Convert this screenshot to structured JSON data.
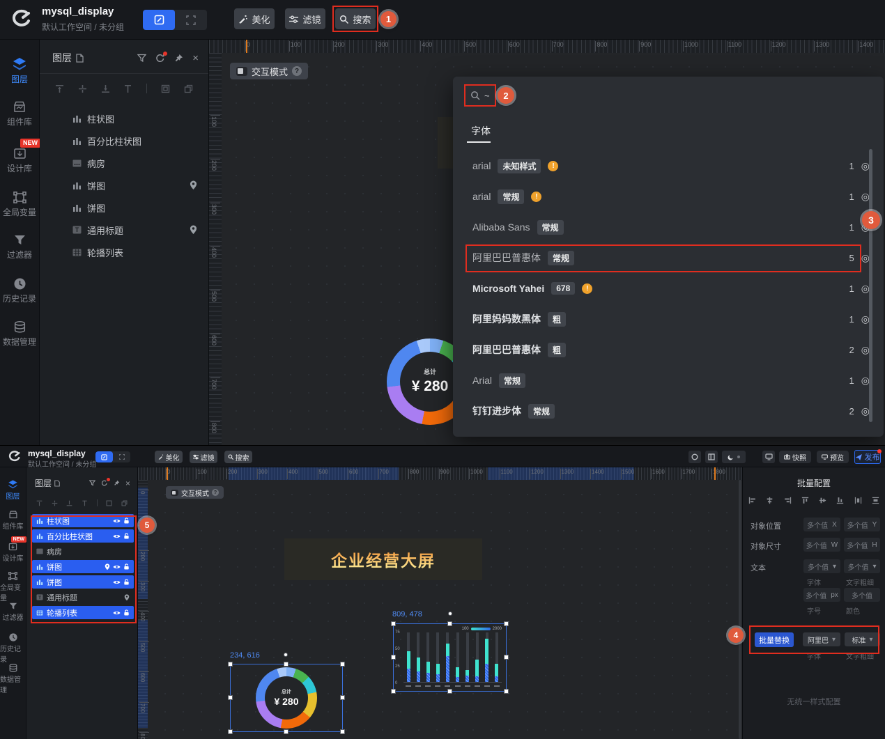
{
  "theme": {
    "red": "#e02d1f",
    "badge": "#e05a3c",
    "warn": "#f0a22c",
    "accent": "#2f6bf2",
    "selrow": "#2a5ef0",
    "teal": "#3fe3cf",
    "barblue": "#2f6be8",
    "hole": "#232528"
  },
  "app": {
    "title": "mysql_display",
    "workspace": "默认工作空间 / 未分组",
    "toolbar": {
      "beautify": "美化",
      "filter": "滤镜",
      "search": "搜索"
    },
    "top_right": {
      "snapshot": "快照",
      "preview": "预览",
      "publish": "发布"
    },
    "interaction_mode": "交互模式"
  },
  "sidebar": {
    "items": [
      {
        "label": "图层"
      },
      {
        "label": "组件库"
      },
      {
        "label": "设计库",
        "badge": "NEW"
      },
      {
        "label": "全局变量"
      },
      {
        "label": "过滤器"
      },
      {
        "label": "历史记录"
      },
      {
        "label": "数据管理"
      }
    ]
  },
  "layers_panel": {
    "title": "图层",
    "items": [
      {
        "label": "柱状图"
      },
      {
        "label": "百分比柱状图"
      },
      {
        "label": "病房"
      },
      {
        "label": "饼图"
      },
      {
        "label": "饼图"
      },
      {
        "label": "通用标题"
      },
      {
        "label": "轮播列表"
      }
    ]
  },
  "search_panel": {
    "query": "~",
    "tab": "字体",
    "fonts": [
      {
        "name": "arial",
        "tag": "未知样式",
        "count": "1"
      },
      {
        "name": "arial",
        "tag": "常规",
        "count": "1"
      },
      {
        "name": "Alibaba Sans",
        "tag": "常规",
        "count": "1"
      },
      {
        "name": "阿里巴巴普惠体",
        "tag": "常规",
        "count": "5"
      },
      {
        "name": "Microsoft Yahei",
        "tag": "678",
        "count": "1"
      },
      {
        "name": "阿里妈妈数黑体",
        "tag": "粗",
        "count": "1"
      },
      {
        "name": "阿里巴巴普惠体",
        "tag": "粗",
        "count": "2"
      },
      {
        "name": "Arial",
        "tag": "常规",
        "count": "1"
      },
      {
        "name": "钉钉进步体",
        "tag": "常规",
        "count": "2"
      }
    ]
  },
  "annotations": {
    "b1": "1",
    "b2": "2",
    "b3": "3",
    "b4": "4",
    "b5": "5"
  },
  "canvas_top": {
    "ruler_h": [
      "0",
      "100",
      "200",
      "300",
      "400",
      "500",
      "600",
      "700",
      "800",
      "900",
      "1000",
      "1100",
      "1200",
      "1300",
      "1400"
    ],
    "ruler_v": [
      "100",
      "200",
      "300",
      "400",
      "500",
      "600",
      "700",
      "800"
    ]
  },
  "canvas_bottom": {
    "ruler_h": [
      "0",
      "100",
      "200",
      "300",
      "400",
      "500",
      "600",
      "700",
      "800",
      "900",
      "1000",
      "1100",
      "1200",
      "1300",
      "1400",
      "1500",
      "1600",
      "1700",
      "1800",
      "1900"
    ],
    "ruler_v": [
      "0",
      "100",
      "200",
      "300",
      "400",
      "500",
      "600",
      "700",
      "800"
    ]
  },
  "screen": {
    "title": "企业经营大屏",
    "donut_label": "234, 616",
    "bar_label": "809, 478",
    "donut_center_label": "总计",
    "donut_center_value": "¥ 280"
  },
  "config_panel": {
    "title": "批量配置",
    "pos_label": "对象位置",
    "size_label": "对象尺寸",
    "text_label": "文本",
    "multi": "多个值",
    "x": "X",
    "y": "Y",
    "w": "W",
    "h": "H",
    "px": "px",
    "font_label": "字体",
    "weight_label": "文字粗细",
    "fontsize_label": "字号",
    "color_label": "颜色",
    "batch_btn": "批量替换",
    "batch_font": "阿里巴",
    "batch_weight": "标准",
    "empty": "无统一样式配置"
  },
  "chart_data": [
    {
      "type": "pie",
      "title": "总计 ¥ 280 donut",
      "center_label": "总计",
      "center_value": "¥ 280",
      "segments": [
        {
          "name": "sky",
          "color": "#7fb0f5",
          "value": 5
        },
        {
          "name": "green",
          "color": "#49b34f",
          "value": 8
        },
        {
          "name": "cyan",
          "color": "#2ec7d6",
          "value": 9
        },
        {
          "name": "yellow",
          "color": "#e7c02e",
          "value": 14
        },
        {
          "name": "orange",
          "color": "#f26a0a",
          "value": 17
        },
        {
          "name": "purple",
          "color": "#a97df2",
          "value": 20
        },
        {
          "name": "blue",
          "color": "#4f87f0",
          "value": 22
        },
        {
          "name": "pale-blue",
          "color": "#a9c9fa",
          "value": 5
        }
      ]
    },
    {
      "type": "bar",
      "stacked": true,
      "ylim": [
        0,
        75
      ],
      "y_ticks": [
        "75",
        "50",
        "25",
        "0"
      ],
      "legend": {
        "min": "100",
        "max": "2000",
        "position": "top-right"
      },
      "categories": [
        "",
        "",
        "",
        "",
        "",
        "",
        "",
        "",
        "",
        ""
      ],
      "series": [
        {
          "name": "upper-teal-top",
          "color": "#3fe3cf",
          "values": [
            47,
            37,
            31,
            27,
            58,
            22,
            18,
            34,
            65,
            27
          ]
        },
        {
          "name": "lower-blue",
          "color": "#2f6be8",
          "values": [
            20,
            16,
            14,
            12,
            39,
            7,
            9,
            8,
            27,
            8
          ]
        }
      ]
    }
  ]
}
